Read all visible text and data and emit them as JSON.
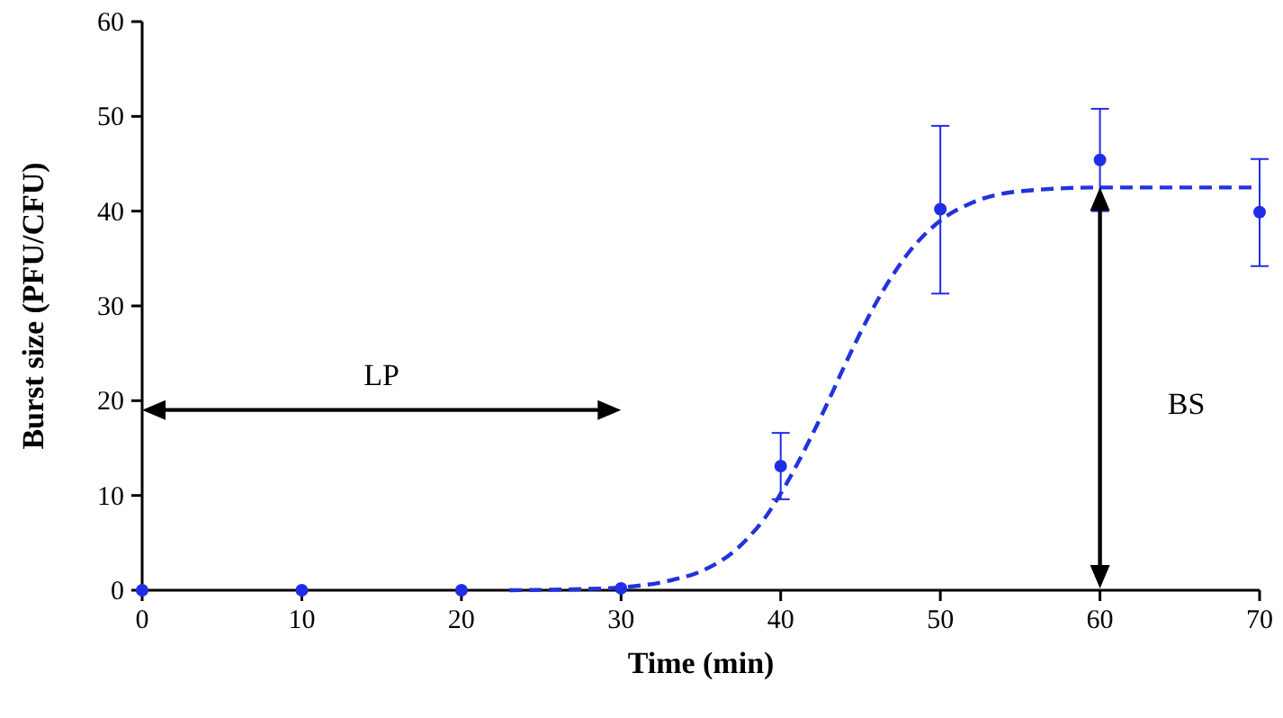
{
  "chart_data": {
    "type": "scatter",
    "xlabel": "Time (min)",
    "ylabel": "Burst size (PFU/CFU)",
    "xlim": [
      0,
      70
    ],
    "xticks": [
      0,
      10,
      20,
      30,
      40,
      50,
      60,
      70
    ],
    "ylim": [
      0,
      60
    ],
    "yticks": [
      0,
      10,
      20,
      30,
      40,
      50,
      60
    ],
    "grid": false,
    "series": [
      {
        "color": "#1f2ee6",
        "marker": "circle",
        "x": [
          0,
          10,
          20,
          30,
          40,
          50,
          60,
          70
        ],
        "values": [
          0,
          0,
          0,
          0.2,
          13.1,
          40.2,
          45.4,
          39.9
        ],
        "errors": [
          null,
          null,
          null,
          null,
          [
            9.6,
            16.6
          ],
          [
            31.3,
            49
          ],
          [
            40,
            50.8
          ],
          [
            34.2,
            45.5
          ]
        ]
      },
      {
        "type": "line",
        "color": "#2233dd",
        "line_style": "dashed",
        "marker": "none",
        "x": [
          23,
          27,
          30,
          33,
          35,
          37,
          38,
          39,
          40,
          41,
          42,
          43,
          44,
          45,
          46,
          47,
          48,
          49,
          50,
          52,
          55,
          60,
          70
        ],
        "values": [
          0,
          0.1,
          0.3,
          1,
          2,
          4,
          5.6,
          7.6,
          10.2,
          13.2,
          16.5,
          20,
          23.7,
          27.2,
          30.4,
          33.2,
          35.6,
          37.5,
          39,
          40.9,
          42.1,
          42.5,
          42.5
        ]
      }
    ],
    "annotations": [
      "LP",
      "BS"
    ]
  }
}
